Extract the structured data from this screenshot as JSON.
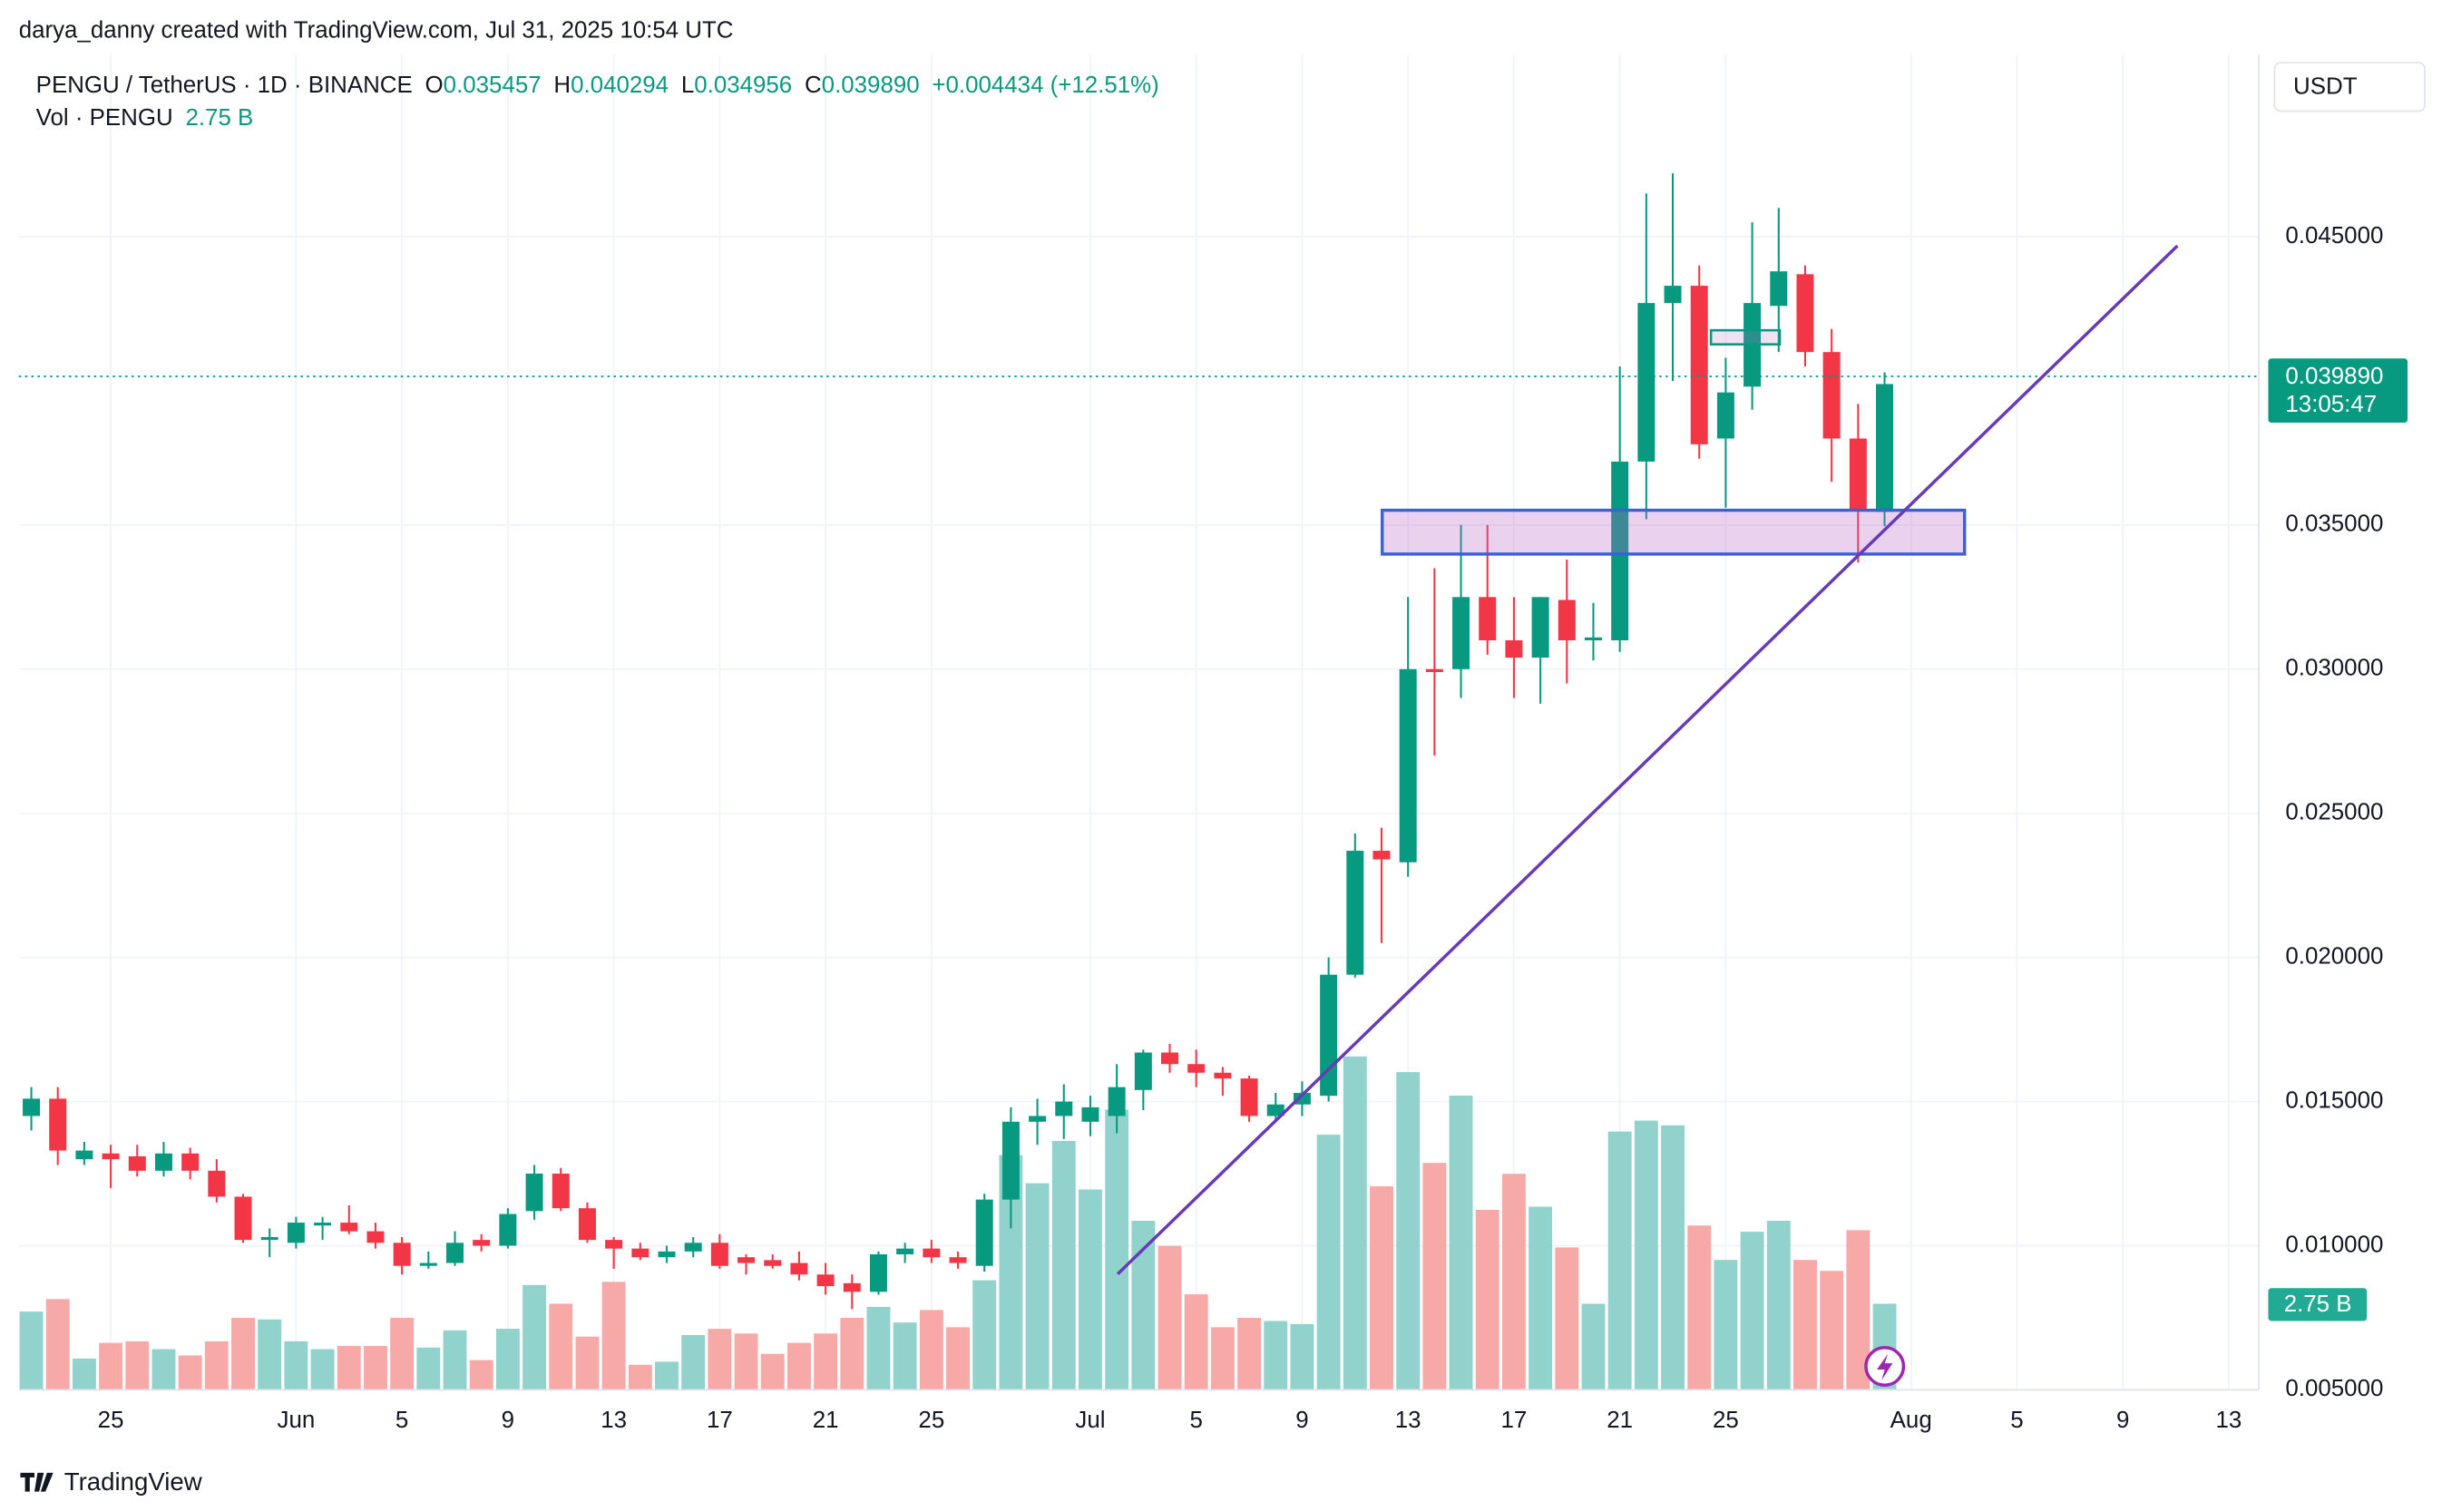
{
  "chart_data": {
    "type": "candlestick",
    "credit": "darya_danny created with TradingView.com, Jul 31, 2025 10:54 UTC",
    "symbol": "PENGU / TetherUS · 1D · BINANCE",
    "header": {
      "o": "O",
      "open": "0.035457",
      "h": "H",
      "high": "0.040294",
      "l": "L",
      "low": "0.034956",
      "c": "C",
      "close": "0.039890",
      "change": "+0.004434 (+12.51%)"
    },
    "volume_title": "Vol · PENGU",
    "volume_header": "2.75 B",
    "currency": "USDT",
    "last_price_label": "0.039890",
    "countdown": "13:05:47",
    "brand": "TradingView",
    "x": [
      "2025-05-22",
      "2025-05-23",
      "2025-05-24",
      "2025-05-25",
      "2025-05-26",
      "2025-05-27",
      "2025-05-28",
      "2025-05-29",
      "2025-05-30",
      "2025-05-31",
      "2025-06-01",
      "2025-06-02",
      "2025-06-03",
      "2025-06-04",
      "2025-06-05",
      "2025-06-06",
      "2025-06-07",
      "2025-06-08",
      "2025-06-09",
      "2025-06-10",
      "2025-06-11",
      "2025-06-12",
      "2025-06-13",
      "2025-06-14",
      "2025-06-15",
      "2025-06-16",
      "2025-06-17",
      "2025-06-18",
      "2025-06-19",
      "2025-06-20",
      "2025-06-21",
      "2025-06-22",
      "2025-06-23",
      "2025-06-24",
      "2025-06-25",
      "2025-06-26",
      "2025-06-27",
      "2025-06-28",
      "2025-06-29",
      "2025-06-30",
      "2025-07-01",
      "2025-07-02",
      "2025-07-03",
      "2025-07-04",
      "2025-07-05",
      "2025-07-06",
      "2025-07-07",
      "2025-07-08",
      "2025-07-09",
      "2025-07-10",
      "2025-07-11",
      "2025-07-12",
      "2025-07-13",
      "2025-07-14",
      "2025-07-15",
      "2025-07-16",
      "2025-07-17",
      "2025-07-18",
      "2025-07-19",
      "2025-07-20",
      "2025-07-21",
      "2025-07-22",
      "2025-07-23",
      "2025-07-24",
      "2025-07-25",
      "2025-07-26",
      "2025-07-27",
      "2025-07-28",
      "2025-07-29",
      "2025-07-30",
      "2025-07-31"
    ],
    "open": [
      0.0145,
      0.0151,
      0.013,
      0.0132,
      0.0131,
      0.0126,
      0.0132,
      0.0126,
      0.0117,
      0.0102,
      0.0101,
      0.0107,
      0.0108,
      0.0105,
      0.0101,
      0.0093,
      0.0094,
      0.0102,
      0.01,
      0.0112,
      0.0125,
      0.0113,
      0.0102,
      0.0099,
      0.0096,
      0.0098,
      0.0101,
      0.0096,
      0.0095,
      0.0094,
      0.009,
      0.0087,
      0.0084,
      0.0097,
      0.0099,
      0.0096,
      0.0093,
      0.0116,
      0.0143,
      0.0145,
      0.0143,
      0.0145,
      0.0154,
      0.0167,
      0.0163,
      0.016,
      0.0158,
      0.0145,
      0.0149,
      0.0152,
      0.0194,
      0.0237,
      0.0233,
      0.03,
      0.03,
      0.0325,
      0.031,
      0.0304,
      0.0324,
      0.031,
      0.031,
      0.0372,
      0.0427,
      0.0433,
      0.038,
      0.0398,
      0.0426,
      0.0437,
      0.041,
      0.038,
      0.035457
    ],
    "high": [
      0.0155,
      0.0155,
      0.0136,
      0.0135,
      0.0135,
      0.0136,
      0.0134,
      0.013,
      0.0118,
      0.0106,
      0.011,
      0.011,
      0.0114,
      0.0108,
      0.0103,
      0.0098,
      0.0105,
      0.0104,
      0.0113,
      0.0128,
      0.0127,
      0.0115,
      0.0103,
      0.0101,
      0.01,
      0.0103,
      0.0104,
      0.0097,
      0.0097,
      0.0098,
      0.0094,
      0.009,
      0.0098,
      0.0101,
      0.0102,
      0.0098,
      0.0118,
      0.0148,
      0.0151,
      0.0156,
      0.0152,
      0.0163,
      0.0168,
      0.017,
      0.0168,
      0.0162,
      0.0159,
      0.0153,
      0.0157,
      0.02,
      0.0243,
      0.0245,
      0.0325,
      0.0335,
      0.035,
      0.035,
      0.0325,
      0.0325,
      0.0338,
      0.0323,
      0.0405,
      0.0465,
      0.0472,
      0.044,
      0.0408,
      0.0455,
      0.046,
      0.044,
      0.0418,
      0.0392,
      0.040294
    ],
    "low": [
      0.014,
      0.0128,
      0.0128,
      0.012,
      0.0124,
      0.0124,
      0.0123,
      0.0115,
      0.0101,
      0.0096,
      0.0099,
      0.0102,
      0.0104,
      0.0099,
      0.009,
      0.0092,
      0.0093,
      0.0098,
      0.0099,
      0.0109,
      0.0112,
      0.0101,
      0.0092,
      0.0095,
      0.0094,
      0.0096,
      0.0092,
      0.009,
      0.0092,
      0.0088,
      0.0083,
      0.0078,
      0.0083,
      0.0094,
      0.0094,
      0.0092,
      0.0091,
      0.0106,
      0.0135,
      0.0137,
      0.0138,
      0.0139,
      0.0147,
      0.016,
      0.0155,
      0.0152,
      0.0143,
      0.0143,
      0.0145,
      0.015,
      0.0193,
      0.0205,
      0.0228,
      0.027,
      0.029,
      0.0305,
      0.029,
      0.0288,
      0.0295,
      0.0303,
      0.0306,
      0.0352,
      0.04,
      0.0373,
      0.0356,
      0.039,
      0.041,
      0.0405,
      0.0365,
      0.0337,
      0.034956
    ],
    "close": [
      0.0151,
      0.0133,
      0.0133,
      0.013,
      0.0126,
      0.0132,
      0.0126,
      0.0117,
      0.0102,
      0.0103,
      0.0108,
      0.0108,
      0.0105,
      0.0101,
      0.0093,
      0.0094,
      0.0101,
      0.01,
      0.0111,
      0.0125,
      0.0113,
      0.0102,
      0.0099,
      0.0096,
      0.0098,
      0.0101,
      0.0093,
      0.0094,
      0.0093,
      0.009,
      0.0086,
      0.0084,
      0.0097,
      0.0099,
      0.0096,
      0.0094,
      0.0116,
      0.0143,
      0.0145,
      0.015,
      0.0148,
      0.0155,
      0.0167,
      0.0163,
      0.016,
      0.0158,
      0.0145,
      0.0149,
      0.0153,
      0.0194,
      0.0237,
      0.0234,
      0.03,
      0.0299,
      0.0325,
      0.031,
      0.0304,
      0.0325,
      0.031,
      0.0311,
      0.0372,
      0.0427,
      0.0433,
      0.0378,
      0.0396,
      0.0427,
      0.0438,
      0.041,
      0.038,
      0.0355,
      0.03989
    ],
    "volume": [
      2.5,
      2.9,
      1.0,
      1.5,
      1.55,
      1.3,
      1.1,
      1.55,
      2.3,
      2.25,
      1.55,
      1.3,
      1.4,
      1.4,
      2.3,
      1.35,
      1.9,
      0.95,
      1.95,
      3.35,
      2.75,
      1.7,
      3.45,
      0.8,
      0.9,
      1.75,
      1.95,
      1.8,
      1.15,
      1.5,
      1.8,
      2.3,
      2.65,
      2.15,
      2.55,
      2.0,
      3.5,
      7.5,
      6.6,
      7.95,
      6.4,
      8.95,
      5.4,
      4.6,
      3.05,
      2.0,
      2.3,
      2.2,
      2.1,
      8.15,
      10.65,
      6.5,
      10.15,
      7.25,
      9.4,
      5.75,
      6.9,
      5.85,
      4.55,
      2.75,
      8.25,
      8.6,
      8.45,
      5.25,
      4.15,
      5.05,
      5.4,
      4.15,
      3.8,
      5.1,
      2.75
    ],
    "volume_last_label": "2.75 B",
    "up_color": "#089981",
    "down_color": "#f23645",
    "volume_up_color": "#92d2cc",
    "volume_down_color": "#f7a9a7",
    "xlim": [
      "2025-05-21",
      "2025-08-15"
    ],
    "xticks": [
      {
        "value": "2025-05-25",
        "label": "25"
      },
      {
        "value": "2025-06-01",
        "label": "Jun"
      },
      {
        "value": "2025-06-05",
        "label": "5"
      },
      {
        "value": "2025-06-09",
        "label": "9"
      },
      {
        "value": "2025-06-13",
        "label": "13"
      },
      {
        "value": "2025-06-17",
        "label": "17"
      },
      {
        "value": "2025-06-21",
        "label": "21"
      },
      {
        "value": "2025-06-25",
        "label": "25"
      },
      {
        "value": "2025-07-01",
        "label": "Jul"
      },
      {
        "value": "2025-07-05",
        "label": "5"
      },
      {
        "value": "2025-07-09",
        "label": "9"
      },
      {
        "value": "2025-07-13",
        "label": "13"
      },
      {
        "value": "2025-07-17",
        "label": "17"
      },
      {
        "value": "2025-07-21",
        "label": "21"
      },
      {
        "value": "2025-07-25",
        "label": "25"
      },
      {
        "value": "2025-08-01",
        "label": "Aug"
      },
      {
        "value": "2025-08-05",
        "label": "5"
      },
      {
        "value": "2025-08-09",
        "label": "9"
      },
      {
        "value": "2025-08-13",
        "label": "13"
      }
    ],
    "ylim": [
      0.005,
      0.0513
    ],
    "yticks": [
      {
        "value": 0.045,
        "label": "0.045000"
      },
      {
        "value": 0.035,
        "label": "0.035000"
      },
      {
        "value": 0.03,
        "label": "0.030000"
      },
      {
        "value": 0.025,
        "label": "0.025000"
      },
      {
        "value": 0.02,
        "label": "0.020000"
      },
      {
        "value": 0.015,
        "label": "0.015000"
      },
      {
        "value": 0.01,
        "label": "0.010000"
      },
      {
        "value": 0.005,
        "label": "0.005000"
      }
    ],
    "grid": true
  }
}
